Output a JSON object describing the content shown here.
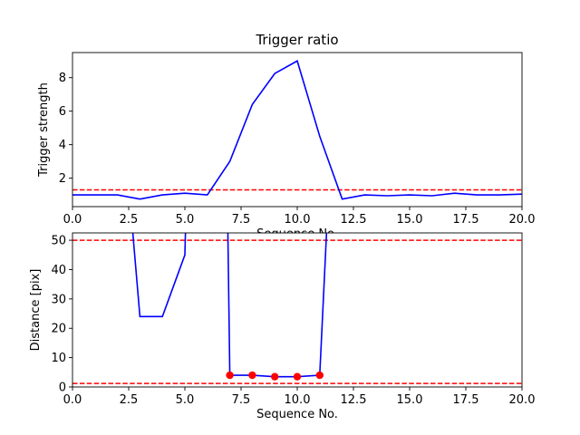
{
  "chart_data": [
    {
      "type": "line",
      "title": "Trigger ratio",
      "xlabel": "Sequence No.",
      "ylabel": "Trigger strength",
      "xlim": [
        0,
        20
      ],
      "ylim": [
        0.3,
        9.5
      ],
      "xticks": [
        0,
        2.5,
        5,
        7.5,
        10,
        12.5,
        15,
        17.5,
        20
      ],
      "xtick_labels": [
        "0.0",
        "2.5",
        "5.0",
        "7.5",
        "10.0",
        "12.5",
        "15.0",
        "17.5",
        "20.0"
      ],
      "yticks": [
        2,
        4,
        6,
        8
      ],
      "ytick_labels": [
        "2",
        "4",
        "6",
        "8"
      ],
      "series": [
        {
          "color": "#0000ff",
          "style": "solid",
          "x": [
            0,
            1,
            2,
            3,
            4,
            5,
            6,
            7,
            8,
            9,
            10,
            11,
            12,
            13,
            14,
            15,
            16,
            17,
            18,
            19,
            20
          ],
          "y": [
            1.0,
            1.0,
            1.0,
            0.75,
            1.0,
            1.1,
            1.0,
            3.0,
            6.4,
            8.25,
            9.0,
            4.5,
            0.75,
            1.0,
            0.95,
            1.0,
            0.95,
            1.1,
            1.0,
            1.0,
            1.05
          ]
        }
      ],
      "hlines": [
        {
          "y": 1.3,
          "color": "#ff0000",
          "style": "dashed"
        }
      ],
      "grid": false
    },
    {
      "type": "line",
      "title": "",
      "xlabel": "Sequence No.",
      "ylabel": "Distance [pix]",
      "xlim": [
        0,
        20
      ],
      "ylim": [
        0,
        52.5
      ],
      "xticks": [
        0,
        2.5,
        5,
        7.5,
        10,
        12.5,
        15,
        17.5,
        20
      ],
      "xtick_labels": [
        "0.0",
        "2.5",
        "5.0",
        "7.5",
        "10.0",
        "12.5",
        "15.0",
        "17.5",
        "20.0"
      ],
      "yticks": [
        0,
        10,
        20,
        30,
        40,
        50
      ],
      "ytick_labels": [
        "0",
        "10",
        "20",
        "30",
        "40",
        "50"
      ],
      "series": [
        {
          "color": "#0000ff",
          "style": "solid",
          "x": [
            2.6,
            3,
            4,
            5,
            5.05,
            6.9,
            7,
            8,
            9,
            10,
            11,
            11.35
          ],
          "y": [
            60,
            24,
            24,
            45,
            60,
            60,
            4,
            4,
            3.5,
            3.5,
            4,
            60
          ]
        }
      ],
      "points": [
        {
          "color": "#ff0000",
          "x": [
            7,
            8,
            9,
            10,
            11
          ],
          "y": [
            4.0,
            4.0,
            3.5,
            3.5,
            4.0
          ]
        }
      ],
      "hlines": [
        {
          "y": 50,
          "color": "#ff0000",
          "style": "dashed"
        },
        {
          "y": 1.2,
          "color": "#ff0000",
          "style": "dashed"
        }
      ],
      "grid": false
    }
  ]
}
